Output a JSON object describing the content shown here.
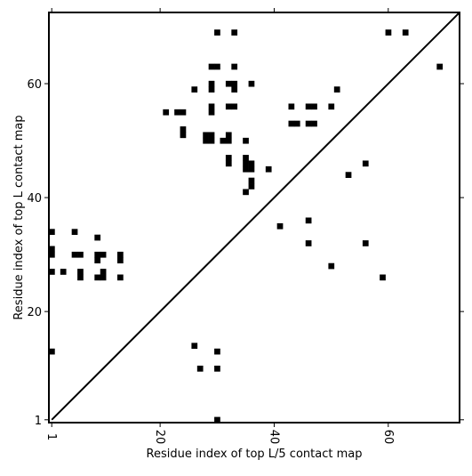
{
  "chart_data": {
    "type": "scatter",
    "title": "",
    "xlabel": "Residue index of top L/5 contact map",
    "ylabel": "Residue index of top L contact map",
    "xlim": [
      0.5,
      72.5
    ],
    "ylim": [
      0.5,
      72.5
    ],
    "xticks": [
      1,
      20,
      40,
      60
    ],
    "yticks": [
      1,
      20,
      40,
      60
    ],
    "x_tick_labels": [
      "1",
      "20",
      "40",
      "60"
    ],
    "y_tick_labels": [
      "1",
      "20",
      "40",
      "60"
    ],
    "x_tick_labels_rotated": true,
    "grid": false,
    "legend": "none",
    "diagonal_line": {
      "from": [
        1,
        1
      ],
      "to": [
        72,
        72
      ]
    },
    "point_color": "#000000",
    "lower_points": [
      [
        26,
        14
      ],
      [
        27,
        10
      ],
      [
        30,
        10
      ],
      [
        30,
        13
      ],
      [
        30,
        1
      ]
    ],
    "upper_points": [
      [
        1,
        34
      ],
      [
        1,
        31
      ],
      [
        1,
        30
      ],
      [
        1,
        27
      ],
      [
        1,
        13
      ],
      [
        3,
        27
      ],
      [
        5,
        34
      ],
      [
        5,
        30
      ],
      [
        6,
        30
      ],
      [
        6,
        27
      ],
      [
        6,
        26
      ],
      [
        9,
        33
      ],
      [
        9,
        30
      ],
      [
        9,
        29
      ],
      [
        9,
        26
      ],
      [
        10,
        30
      ],
      [
        10,
        27
      ],
      [
        10,
        26
      ],
      [
        13,
        30
      ],
      [
        13,
        29
      ],
      [
        13,
        26
      ],
      [
        21,
        55
      ],
      [
        23,
        55
      ],
      [
        24,
        55
      ],
      [
        24,
        52
      ],
      [
        24,
        51
      ],
      [
        26,
        59
      ],
      [
        28,
        51
      ],
      [
        28,
        50
      ],
      [
        29,
        51
      ],
      [
        29,
        50
      ],
      [
        29,
        63
      ],
      [
        29,
        60
      ],
      [
        29,
        59
      ],
      [
        29,
        56
      ],
      [
        29,
        55
      ],
      [
        30,
        63
      ],
      [
        30,
        69
      ],
      [
        31,
        50
      ],
      [
        32,
        60
      ],
      [
        32,
        56
      ],
      [
        32,
        51
      ],
      [
        32,
        50
      ],
      [
        32,
        47
      ],
      [
        32,
        46
      ],
      [
        33,
        69
      ],
      [
        33,
        63
      ],
      [
        33,
        60
      ],
      [
        33,
        59
      ],
      [
        33,
        56
      ],
      [
        35,
        50
      ],
      [
        35,
        47
      ],
      [
        35,
        46
      ],
      [
        35,
        45
      ],
      [
        35,
        41
      ],
      [
        36,
        60
      ],
      [
        36,
        46
      ],
      [
        36,
        45
      ],
      [
        36,
        43
      ],
      [
        36,
        42
      ],
      [
        39,
        45
      ],
      [
        41,
        35
      ],
      [
        43,
        56
      ],
      [
        43,
        53
      ],
      [
        44,
        53
      ],
      [
        46,
        36
      ],
      [
        46,
        32
      ],
      [
        46,
        56
      ],
      [
        46,
        53
      ],
      [
        47,
        56
      ],
      [
        47,
        53
      ],
      [
        50,
        56
      ],
      [
        50,
        28
      ],
      [
        51,
        59
      ],
      [
        53,
        44
      ],
      [
        56,
        46
      ],
      [
        56,
        32
      ],
      [
        59,
        26
      ],
      [
        60,
        69
      ],
      [
        63,
        69
      ],
      [
        69,
        63
      ]
    ]
  }
}
